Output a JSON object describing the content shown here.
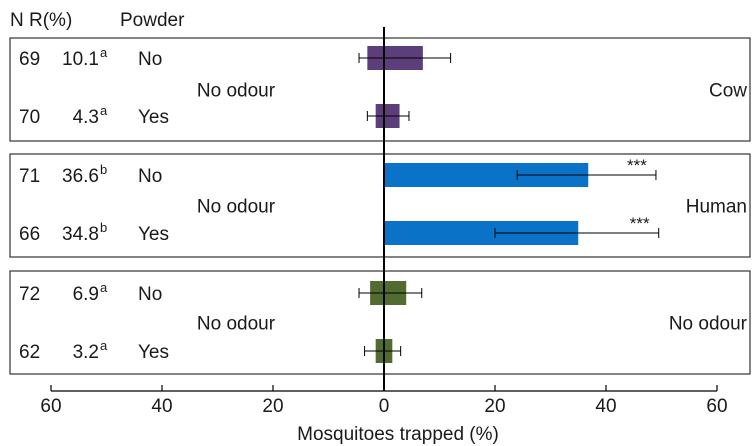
{
  "chart_data": {
    "type": "bar",
    "orientation": "horizontal-diverging",
    "xlabel": "Mosquitoes trapped (%)",
    "xlim": [
      -60,
      60
    ],
    "xticks": [
      -60,
      -40,
      -20,
      0,
      20,
      40,
      60
    ],
    "xtick_labels": [
      "60",
      "40",
      "20",
      "0",
      "20",
      "40",
      "60"
    ],
    "column_headers": {
      "n": "N",
      "r": "R(%)",
      "powder": "Powder"
    },
    "groups": [
      {
        "left_label": "No odour",
        "right_label": "Cow",
        "color": "#5b3e7a",
        "rows": [
          {
            "n": "69",
            "r": "10.1",
            "sup": "a",
            "powder": "No",
            "left": 3.0,
            "right": 7.0,
            "err_low": -4.5,
            "err_high": 12.0,
            "sig": ""
          },
          {
            "n": "70",
            "r": "4.3",
            "sup": "a",
            "powder": "Yes",
            "left": 1.5,
            "right": 2.8,
            "err_low": -3.0,
            "err_high": 4.5,
            "sig": ""
          }
        ]
      },
      {
        "left_label": "No odour",
        "right_label": "Human",
        "color": "#0a73c8",
        "rows": [
          {
            "n": "71",
            "r": "36.6",
            "sup": "b",
            "powder": "No",
            "left": 0,
            "right": 36.8,
            "err_low": 24.0,
            "err_high": 49.0,
            "sig": "***"
          },
          {
            "n": "66",
            "r": "34.8",
            "sup": "b",
            "powder": "Yes",
            "left": 0,
            "right": 35.0,
            "err_low": 20.0,
            "err_high": 49.5,
            "sig": "***"
          }
        ]
      },
      {
        "left_label": "No odour",
        "right_label": "No odour",
        "color": "#526b30",
        "rows": [
          {
            "n": "72",
            "r": "6.9",
            "sup": "a",
            "powder": "No",
            "left": 2.5,
            "right": 4.0,
            "err_low": -4.5,
            "err_high": 6.8,
            "sig": ""
          },
          {
            "n": "62",
            "r": "3.2",
            "sup": "a",
            "powder": "Yes",
            "left": 1.5,
            "right": 1.5,
            "err_low": -3.5,
            "err_high": 3.0,
            "sig": ""
          }
        ]
      }
    ]
  }
}
